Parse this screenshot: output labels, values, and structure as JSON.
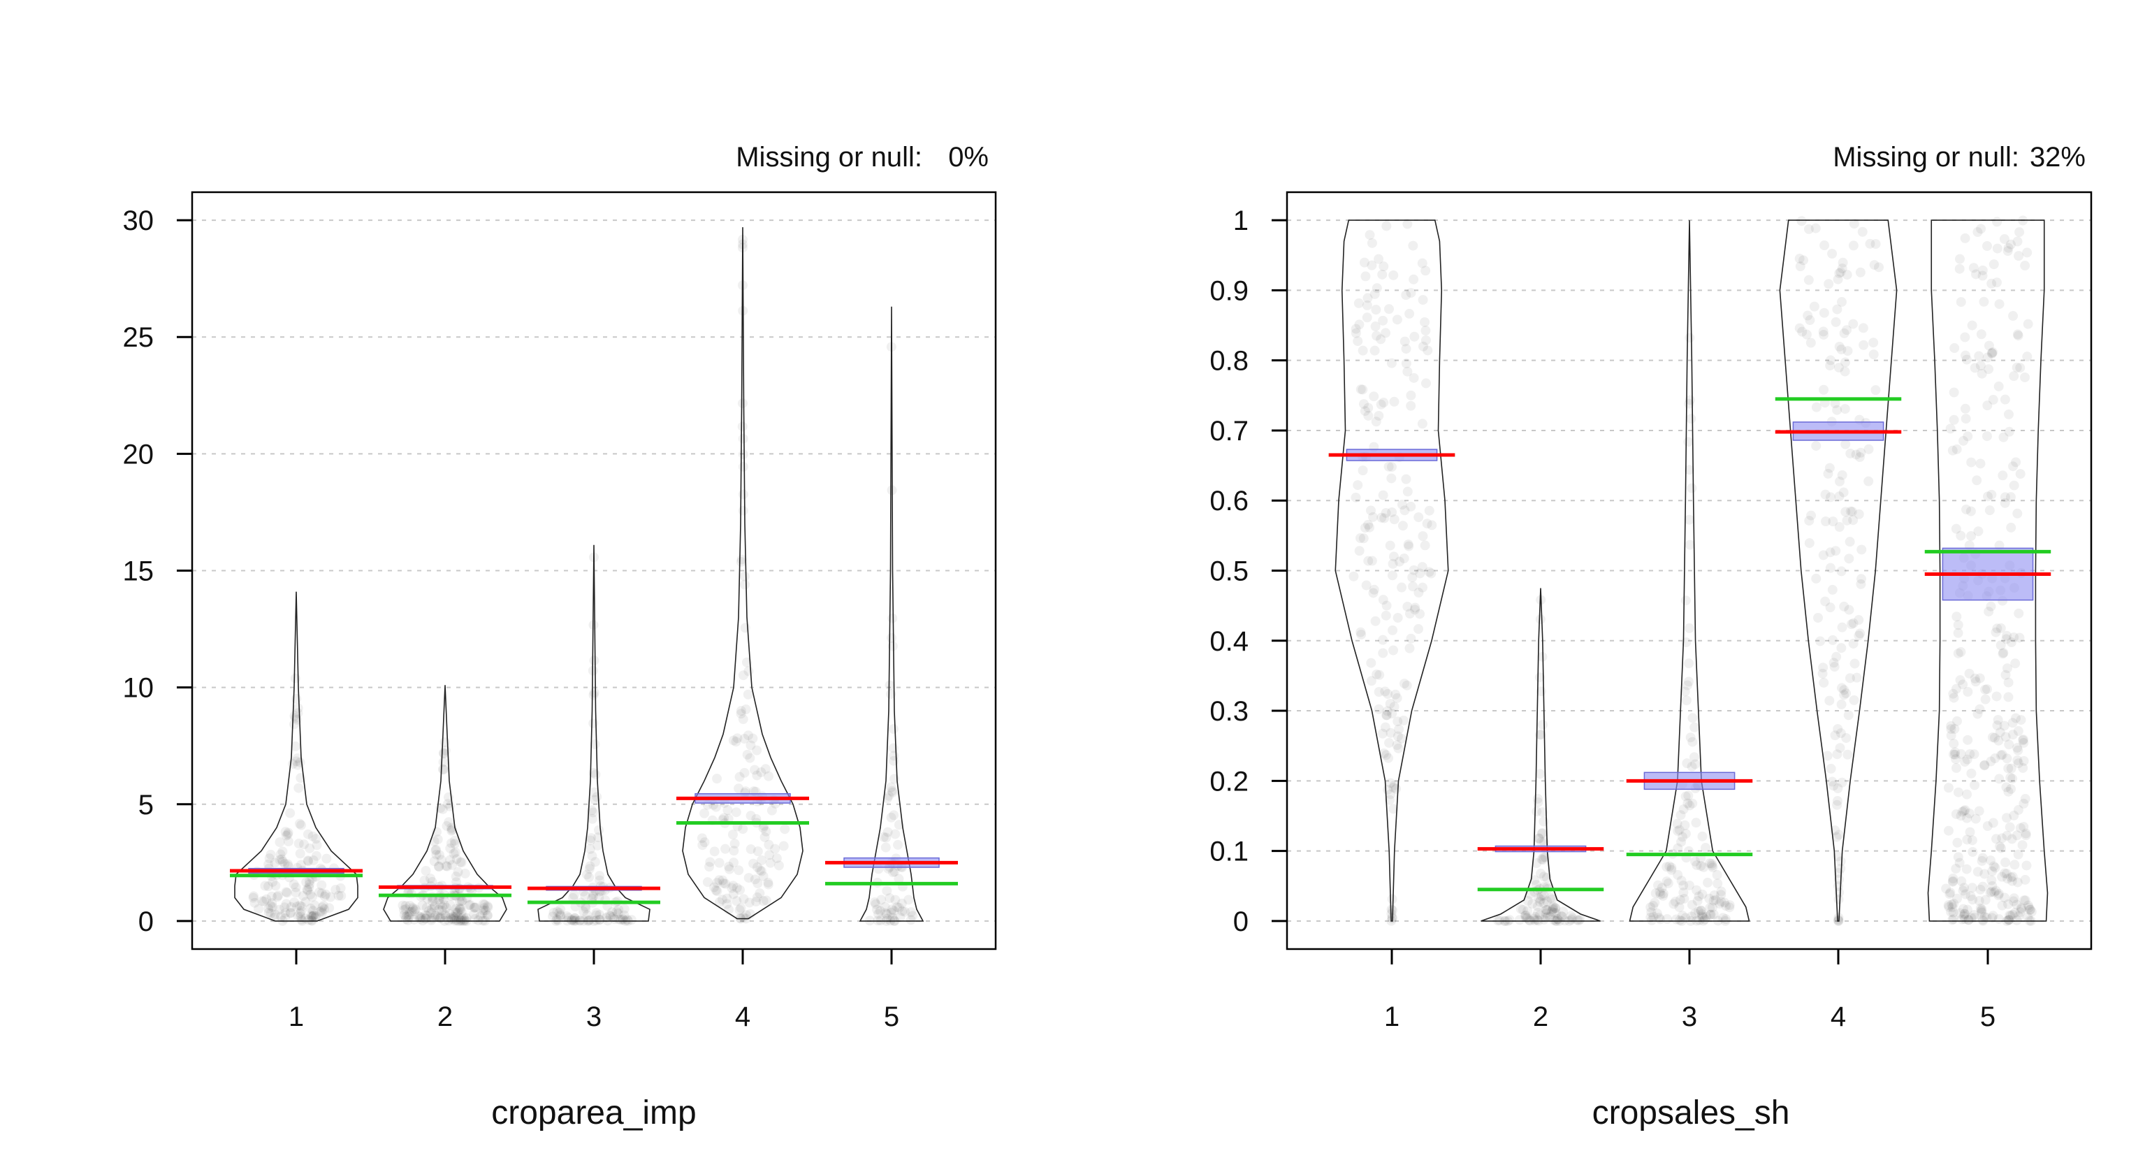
{
  "chart_data": [
    {
      "type": "violin",
      "xlabel": "croparea_imp",
      "missing_label": "Missing or null:",
      "missing_value": "0%",
      "categories": [
        "1",
        "2",
        "3",
        "4",
        "5"
      ],
      "y_ticks": [
        0,
        5,
        10,
        15,
        20,
        25,
        30
      ],
      "y_tick_labels": [
        "0",
        "5",
        "10",
        "15",
        "20",
        "25",
        "30"
      ],
      "ylim": [
        -1.2,
        31.2
      ],
      "grid": "horizontal dashed",
      "groups": [
        {
          "category": "1",
          "mean": 2.15,
          "median": 1.95,
          "ci": [
            2.05,
            2.25
          ],
          "max": 14.1,
          "density": [
            [
              0,
              0.3
            ],
            [
              0.5,
              0.75
            ],
            [
              1,
              0.88
            ],
            [
              1.5,
              0.88
            ],
            [
              2,
              0.86
            ],
            [
              2.5,
              0.68
            ],
            [
              3,
              0.5
            ],
            [
              4,
              0.28
            ],
            [
              5,
              0.15
            ],
            [
              7,
              0.07
            ],
            [
              10,
              0.03
            ],
            [
              14.1,
              0
            ]
          ]
        },
        {
          "category": "2",
          "mean": 1.45,
          "median": 1.1,
          "ci": [
            1.38,
            1.52
          ],
          "max": 10.1,
          "density": [
            [
              0,
              0.78
            ],
            [
              0.5,
              0.88
            ],
            [
              1,
              0.82
            ],
            [
              1.5,
              0.62
            ],
            [
              2,
              0.46
            ],
            [
              3,
              0.26
            ],
            [
              4,
              0.14
            ],
            [
              6,
              0.06
            ],
            [
              8,
              0.03
            ],
            [
              10.1,
              0
            ]
          ]
        },
        {
          "category": "3",
          "mean": 1.4,
          "median": 0.8,
          "ci": [
            1.32,
            1.48
          ],
          "max": 16.1,
          "density": [
            [
              0,
              0.78
            ],
            [
              0.5,
              0.8
            ],
            [
              1,
              0.45
            ],
            [
              1.5,
              0.3
            ],
            [
              2,
              0.2
            ],
            [
              3,
              0.13
            ],
            [
              4,
              0.09
            ],
            [
              6,
              0.05
            ],
            [
              9,
              0.025
            ],
            [
              16.1,
              0
            ]
          ]
        },
        {
          "category": "4",
          "mean": 5.25,
          "median": 4.2,
          "ci": [
            5.05,
            5.45
          ],
          "max": 29.7,
          "density": [
            [
              0.1,
              0.08
            ],
            [
              1,
              0.55
            ],
            [
              2,
              0.78
            ],
            [
              3,
              0.86
            ],
            [
              4,
              0.82
            ],
            [
              5,
              0.72
            ],
            [
              6,
              0.55
            ],
            [
              7,
              0.4
            ],
            [
              8,
              0.28
            ],
            [
              10,
              0.13
            ],
            [
              13,
              0.06
            ],
            [
              17,
              0.03
            ],
            [
              22,
              0.015
            ],
            [
              29.7,
              0
            ]
          ]
        },
        {
          "category": "5",
          "mean": 2.5,
          "median": 1.6,
          "ci": [
            2.3,
            2.7
          ],
          "max": 26.3,
          "density": [
            [
              0,
              0.45
            ],
            [
              0.5,
              0.36
            ],
            [
              1,
              0.32
            ],
            [
              2,
              0.28
            ],
            [
              3,
              0.22
            ],
            [
              4,
              0.16
            ],
            [
              6,
              0.08
            ],
            [
              9,
              0.04
            ],
            [
              15,
              0.015
            ],
            [
              26.3,
              0
            ]
          ]
        }
      ]
    },
    {
      "type": "violin",
      "xlabel": "cropsales_sh",
      "missing_label": "Missing or null:",
      "missing_value": "32%",
      "categories": [
        "1",
        "2",
        "3",
        "4",
        "5"
      ],
      "y_ticks": [
        0,
        0.1,
        0.2,
        0.3,
        0.4,
        0.5,
        0.6,
        0.7,
        0.8,
        0.9,
        1
      ],
      "y_tick_labels": [
        "0",
        "0.1",
        "0.2",
        "0.3",
        "0.4",
        "0.5",
        "0.6",
        "0.7",
        "0.8",
        "0.9",
        "1"
      ],
      "ylim": [
        -0.04,
        1.04
      ],
      "grid": "horizontal dashed",
      "groups": [
        {
          "category": "1",
          "mean": 0.665,
          "median": 0.665,
          "ci": [
            0.657,
            0.673
          ],
          "max": 1,
          "density": [
            [
              0,
              0.01
            ],
            [
              0.1,
              0.04
            ],
            [
              0.2,
              0.1
            ],
            [
              0.3,
              0.3
            ],
            [
              0.4,
              0.6
            ],
            [
              0.5,
              0.85
            ],
            [
              0.6,
              0.8
            ],
            [
              0.7,
              0.7
            ],
            [
              0.8,
              0.72
            ],
            [
              0.9,
              0.75
            ],
            [
              0.97,
              0.72
            ],
            [
              1,
              0.65
            ]
          ]
        },
        {
          "category": "2",
          "mean": 0.103,
          "median": 0.045,
          "ci": [
            0.099,
            0.107
          ],
          "max": 0.475,
          "density": [
            [
              0,
              0.9
            ],
            [
              0.01,
              0.6
            ],
            [
              0.03,
              0.25
            ],
            [
              0.06,
              0.14
            ],
            [
              0.1,
              0.1
            ],
            [
              0.2,
              0.07
            ],
            [
              0.3,
              0.05
            ],
            [
              0.4,
              0.03
            ],
            [
              0.475,
              0
            ]
          ]
        },
        {
          "category": "3",
          "mean": 0.2,
          "median": 0.095,
          "ci": [
            0.188,
            0.212
          ],
          "max": 1,
          "density": [
            [
              0,
              0.9
            ],
            [
              0.02,
              0.85
            ],
            [
              0.06,
              0.6
            ],
            [
              0.1,
              0.35
            ],
            [
              0.2,
              0.18
            ],
            [
              0.4,
              0.09
            ],
            [
              0.6,
              0.06
            ],
            [
              0.8,
              0.035
            ],
            [
              1,
              0
            ]
          ]
        },
        {
          "category": "4",
          "mean": 0.698,
          "median": 0.745,
          "ci": [
            0.686,
            0.712
          ],
          "max": 1,
          "density": [
            [
              0,
              0.01
            ],
            [
              0.1,
              0.06
            ],
            [
              0.2,
              0.18
            ],
            [
              0.3,
              0.32
            ],
            [
              0.4,
              0.45
            ],
            [
              0.5,
              0.56
            ],
            [
              0.6,
              0.64
            ],
            [
              0.7,
              0.72
            ],
            [
              0.8,
              0.8
            ],
            [
              0.9,
              0.88
            ],
            [
              1,
              0.75
            ]
          ]
        },
        {
          "category": "5",
          "mean": 0.495,
          "median": 0.527,
          "ci": [
            0.458,
            0.532
          ],
          "max": 1,
          "density": [
            [
              0,
              0.88
            ],
            [
              0.04,
              0.9
            ],
            [
              0.1,
              0.85
            ],
            [
              0.2,
              0.78
            ],
            [
              0.3,
              0.73
            ],
            [
              0.4,
              0.72
            ],
            [
              0.5,
              0.72
            ],
            [
              0.6,
              0.73
            ],
            [
              0.7,
              0.76
            ],
            [
              0.8,
              0.8
            ],
            [
              0.9,
              0.85
            ],
            [
              1,
              0.85
            ]
          ]
        }
      ]
    }
  ]
}
